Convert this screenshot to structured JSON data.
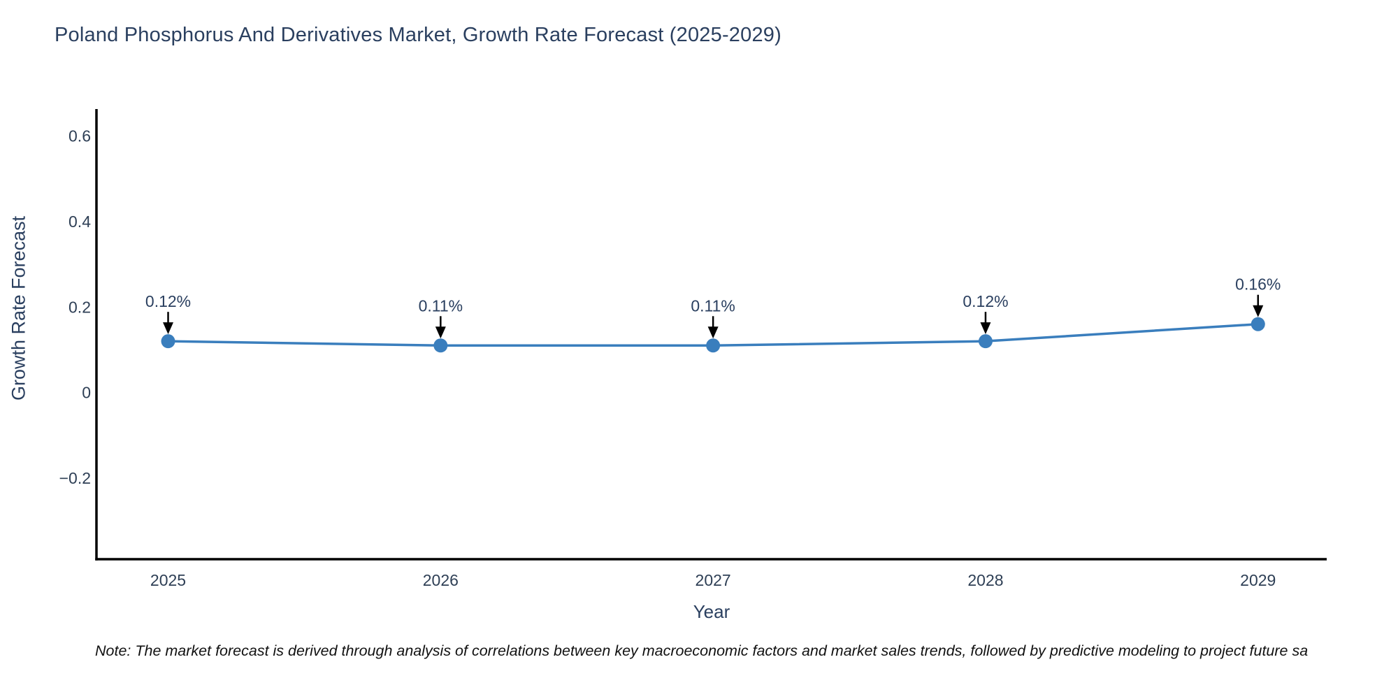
{
  "page": {
    "footnote": "Note: The market forecast is derived through analysis of correlations between key macroeconomic factors and market sales trends, followed by predictive modeling to project future sa"
  },
  "chart_data": {
    "type": "line",
    "title": "Poland Phosphorus And Derivatives Market, Growth Rate Forecast (2025-2029)",
    "xlabel": "Year",
    "ylabel": "Growth Rate Forecast",
    "x": [
      2025,
      2026,
      2027,
      2028,
      2029
    ],
    "x_tick_labels": [
      "2025",
      "2026",
      "2027",
      "2028",
      "2029"
    ],
    "series": [
      {
        "name": "Growth Rate Forecast",
        "values": [
          0.12,
          0.11,
          0.11,
          0.12,
          0.16
        ]
      }
    ],
    "point_labels": [
      "0.12%",
      "0.11%",
      "0.11%",
      "0.12%",
      "0.16%"
    ],
    "y_ticks": [
      0.6,
      0.4,
      0.2,
      0,
      -0.2
    ],
    "y_tick_labels": [
      "0.6",
      "0.4",
      "0.2",
      "0",
      "−0.2"
    ],
    "xlim": [
      2024.737,
      2029.252
    ],
    "ylim": [
      -0.39,
      0.66
    ],
    "grid": false,
    "legend_position": "none",
    "annotations_have_arrows": true,
    "colors": {
      "line": "#3a7ebd",
      "marker": "#3a7ebd",
      "axis_line": "#000000",
      "arrow": "#000000",
      "title_text": "#2a3f5f",
      "tick_text": "#2e3f55",
      "annotation_text": "#2a3f5f",
      "note_text": "#111111"
    }
  }
}
